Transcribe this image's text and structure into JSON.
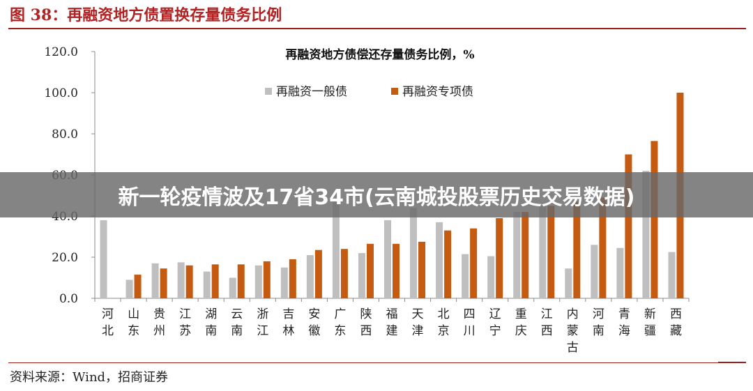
{
  "figure": {
    "title": "图 38：再融资地方债置换存量债务比例",
    "source": "资料来源：Wind，招商证券"
  },
  "banner": {
    "text": "新一轮疫情波及17省34市(云南城投股票历史交易数据)"
  },
  "colors": {
    "general_bond": "#bfbfbf",
    "special_bond": "#c55a11",
    "title": "#b22222",
    "rule": "#9b1b1b",
    "overlay": "rgba(105,105,105,0.82)"
  },
  "chart_data": {
    "type": "bar",
    "title": "再融资地方债偿还存量债务比例，%",
    "xlabel": "",
    "ylabel": "",
    "ylim": [
      0,
      120
    ],
    "yticks": [
      "0.0",
      "20.0",
      "40.0",
      "60.0",
      "80.0",
      "100.0",
      "120.0"
    ],
    "grid": false,
    "legend": "top-center",
    "categories": [
      "河北",
      "山东",
      "贵州",
      "江苏",
      "湖南",
      "云南",
      "浙江",
      "吉林",
      "安徽",
      "广东",
      "陕西",
      "福建",
      "天津",
      "北京",
      "四川",
      "辽宁",
      "重庆",
      "江西",
      "内蒙古",
      "河南",
      "青海",
      "新疆",
      "西藏"
    ],
    "series": [
      {
        "name": "再融资一般债",
        "values": [
          38.0,
          9.0,
          17.0,
          17.5,
          13.0,
          10.0,
          16.0,
          15.0,
          21.0,
          47.0,
          22.0,
          38.0,
          44.0,
          37.0,
          21.5,
          20.5,
          42.0,
          45.0,
          14.5,
          26.0,
          24.5,
          62.0,
          22.5
        ]
      },
      {
        "name": "再融资专项债",
        "values": [
          null,
          11.5,
          14.5,
          16.0,
          16.5,
          16.5,
          18.0,
          19.0,
          23.5,
          24.0,
          26.5,
          26.5,
          27.5,
          33.0,
          34.0,
          39.0,
          42.0,
          45.0,
          47.0,
          49.0,
          70.0,
          76.5,
          100.0
        ]
      }
    ]
  }
}
